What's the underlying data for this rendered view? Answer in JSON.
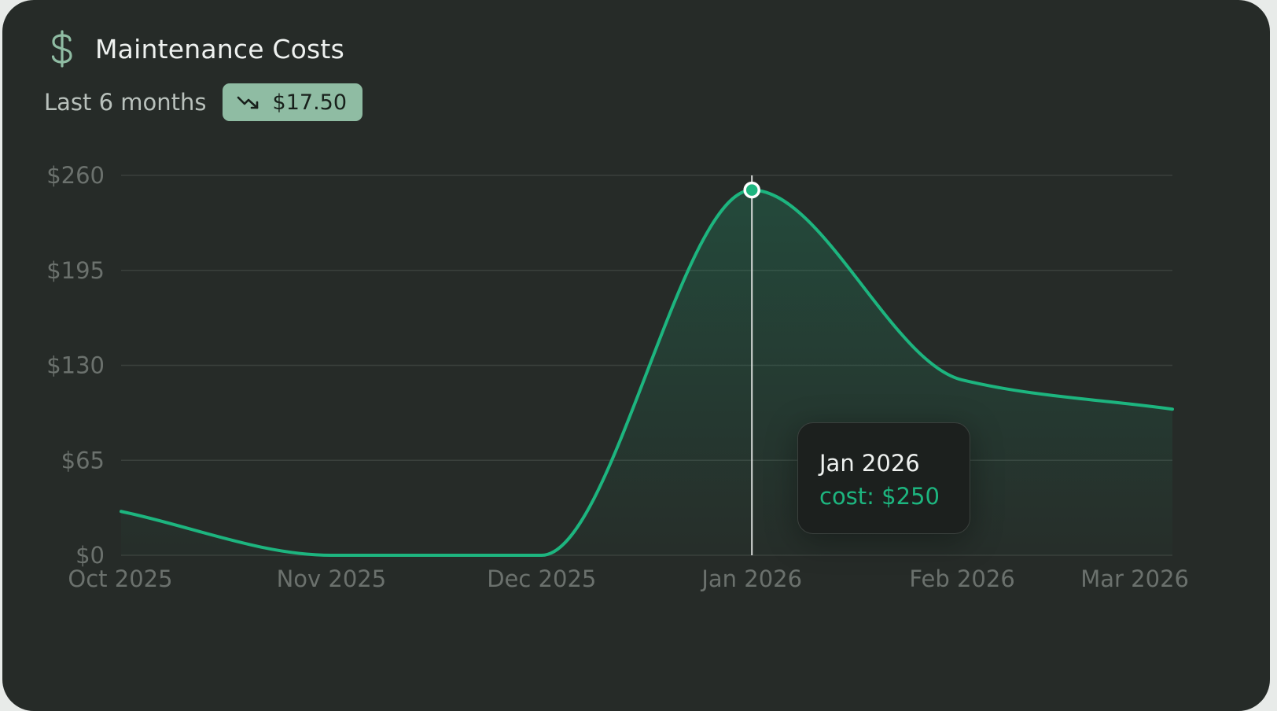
{
  "card": {
    "title": "Maintenance Costs",
    "title_icon": "dollar-icon",
    "period_label": "Last 6 months",
    "badge": {
      "icon": "trending-down-icon",
      "value": "$17.50"
    }
  },
  "tooltip": {
    "date": "Jan 2026",
    "series_label": "cost",
    "value": "$250",
    "text": "cost: $250"
  },
  "colors": {
    "line": "#1db57f",
    "badge_bg": "#8fbca3",
    "card_bg": "#262b28"
  },
  "chart_data": {
    "type": "area",
    "title": "Maintenance Costs",
    "x": [
      "Oct 2025",
      "Nov 2025",
      "Dec 2025",
      "Jan 2026",
      "Feb 2026",
      "Mar 2026"
    ],
    "series": [
      {
        "name": "cost",
        "values": [
          30,
          0,
          0,
          250,
          120,
          100
        ]
      }
    ],
    "y_ticks": [
      "$0",
      "$65",
      "$130",
      "$195",
      "$260"
    ],
    "y_tick_values": [
      0,
      65,
      130,
      195,
      260
    ],
    "ylim": [
      0,
      260
    ],
    "grid": true,
    "highlighted_x": "Jan 2026",
    "xlabel": "",
    "ylabel": ""
  }
}
